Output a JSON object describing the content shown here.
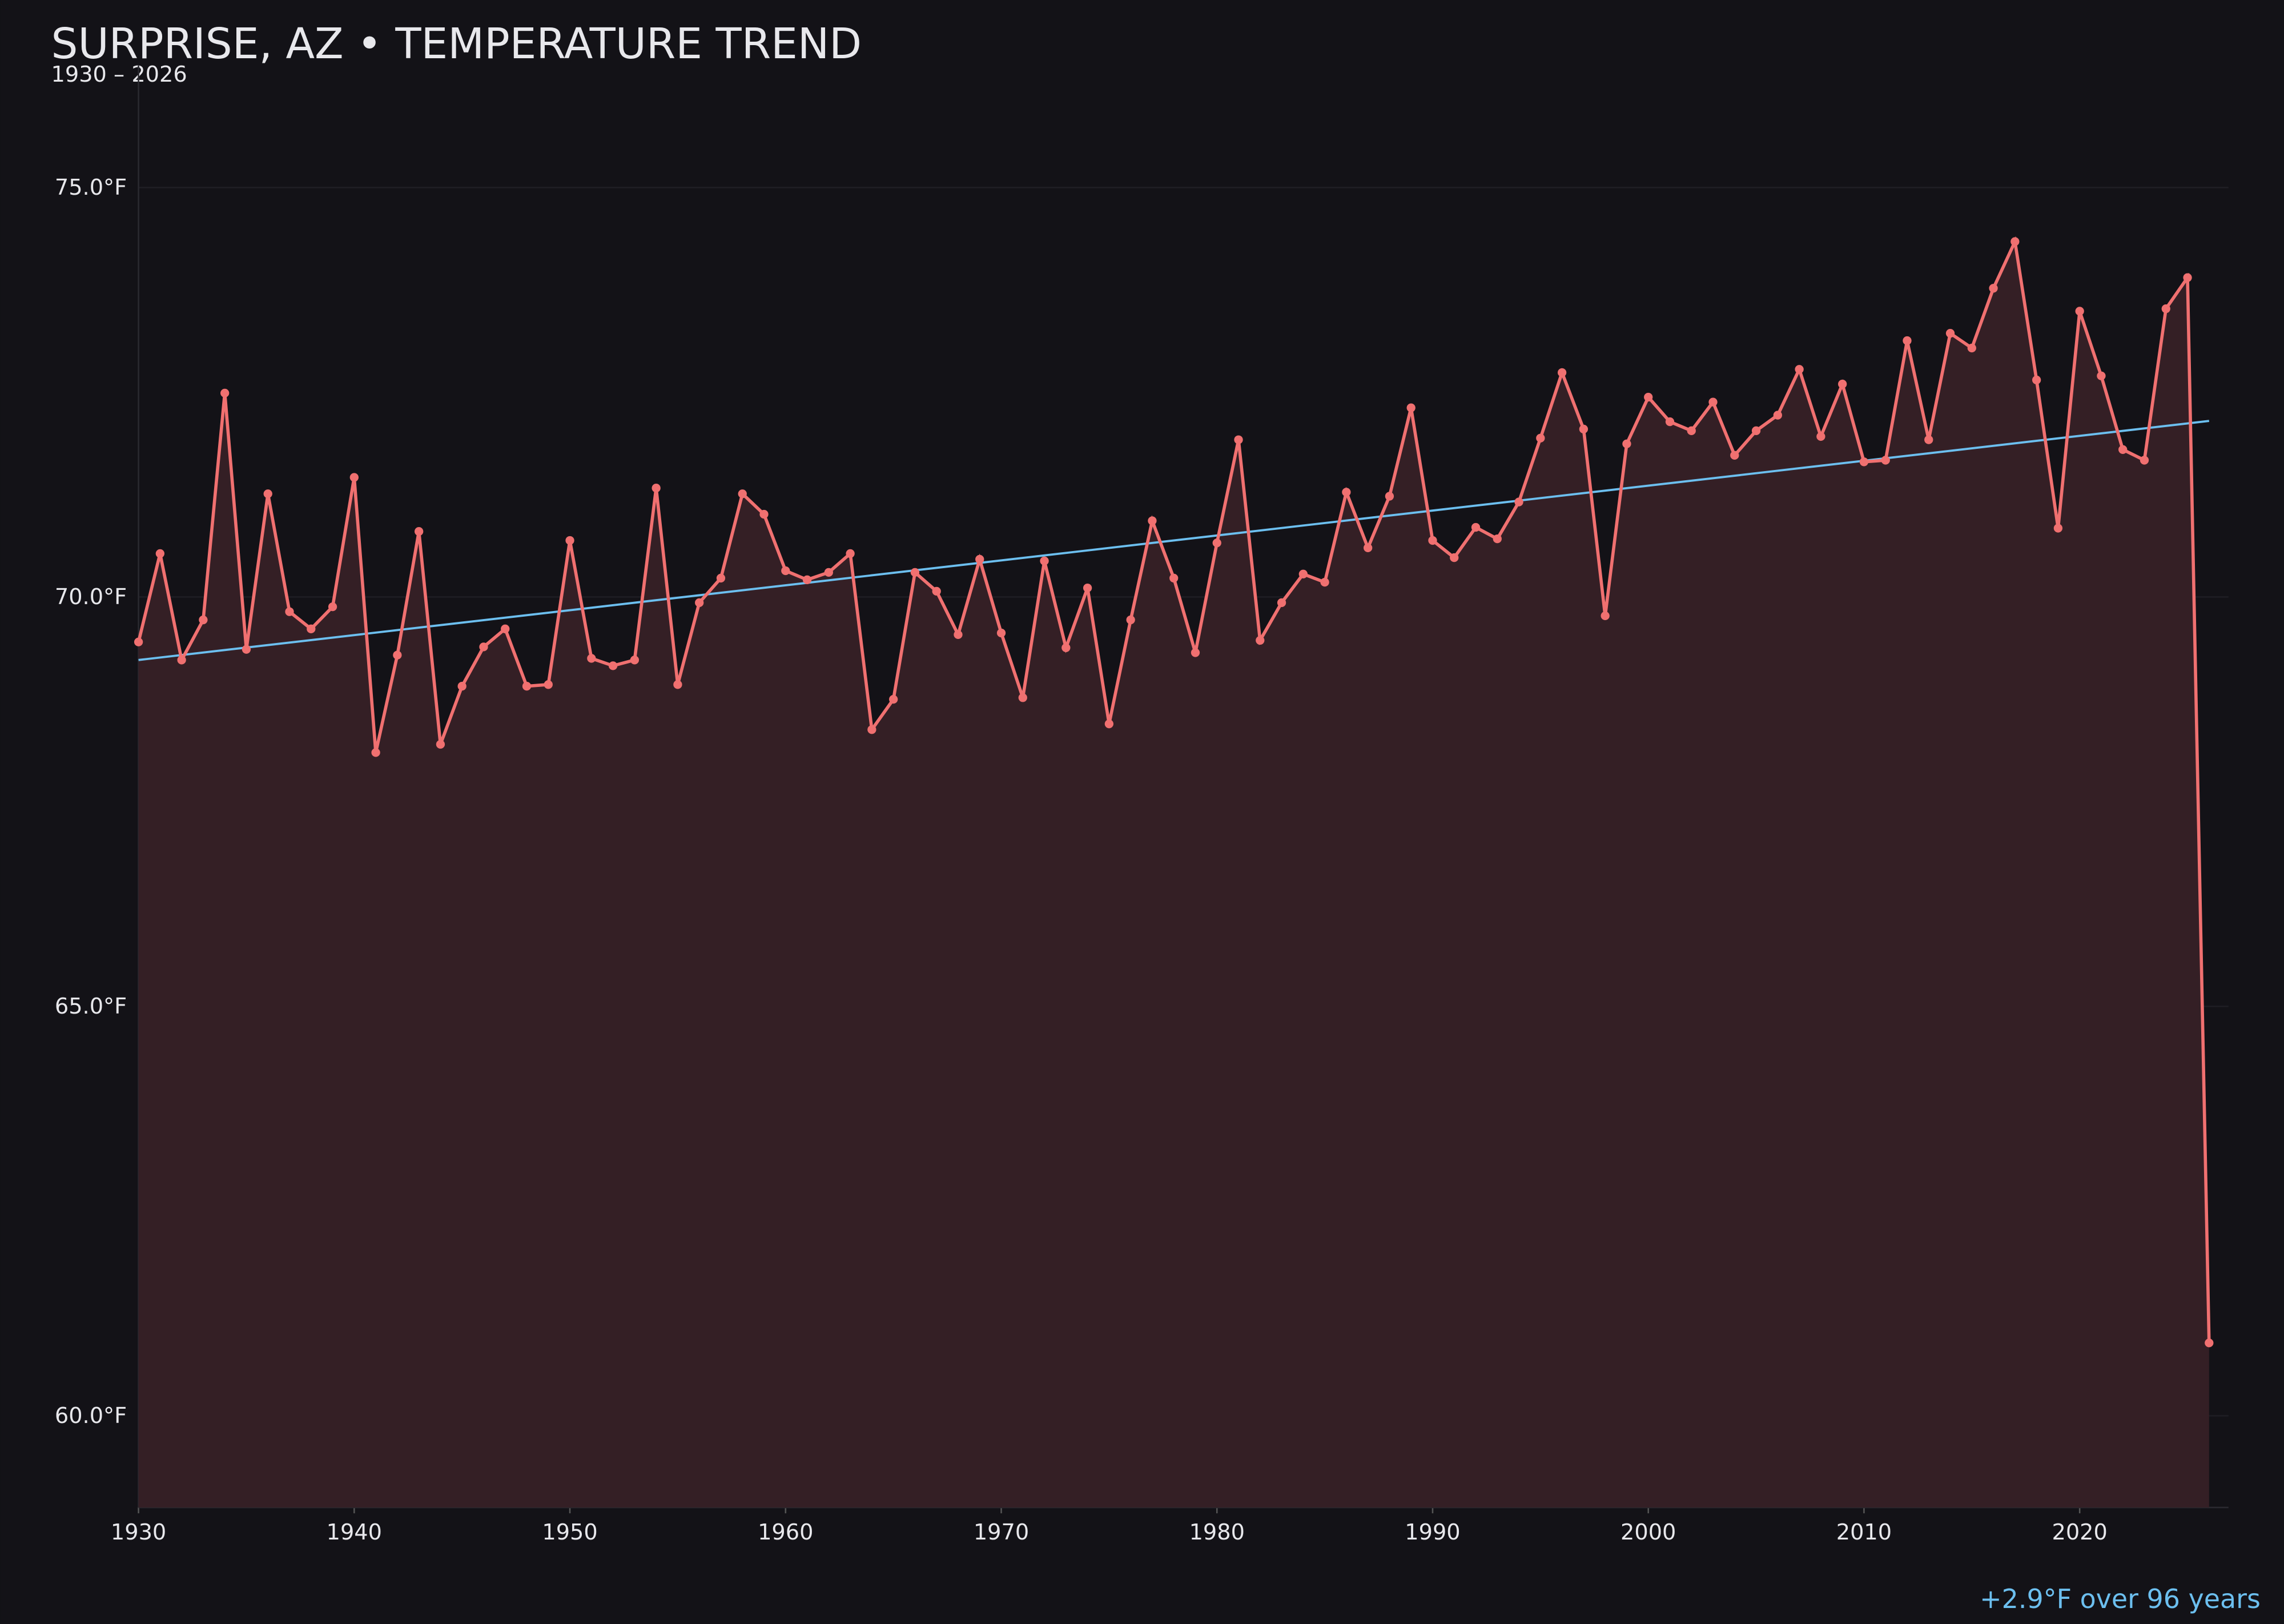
{
  "chart_data": {
    "type": "line",
    "title": "SURPRISE, AZ • TEMPERATURE TREND",
    "subtitle": "1930 – 2026",
    "annotation": "+2.9°F over 96 years",
    "x": [
      1930,
      1931,
      1932,
      1933,
      1934,
      1935,
      1936,
      1937,
      1938,
      1939,
      1940,
      1941,
      1942,
      1943,
      1944,
      1945,
      1946,
      1947,
      1948,
      1949,
      1950,
      1951,
      1952,
      1953,
      1954,
      1955,
      1956,
      1957,
      1958,
      1959,
      1960,
      1961,
      1962,
      1963,
      1964,
      1965,
      1966,
      1967,
      1968,
      1969,
      1970,
      1971,
      1972,
      1973,
      1974,
      1975,
      1976,
      1977,
      1978,
      1979,
      1980,
      1981,
      1982,
      1983,
      1984,
      1985,
      1986,
      1987,
      1988,
      1989,
      1990,
      1991,
      1992,
      1993,
      1994,
      1995,
      1996,
      1997,
      1998,
      1999,
      2000,
      2001,
      2002,
      2003,
      2004,
      2005,
      2006,
      2007,
      2008,
      2009,
      2010,
      2011,
      2012,
      2013,
      2014,
      2015,
      2016,
      2017,
      2018,
      2019,
      2020,
      2021,
      2022,
      2023,
      2024,
      2025,
      2026
    ],
    "series": [
      {
        "color": "#f07070",
        "values": [
          69.45,
          70.53,
          69.23,
          69.72,
          72.49,
          69.36,
          71.26,
          69.82,
          69.61,
          69.88,
          71.46,
          68.1,
          69.29,
          70.8,
          68.2,
          68.91,
          69.39,
          69.61,
          68.91,
          68.93,
          70.69,
          69.25,
          69.16,
          69.23,
          71.33,
          68.93,
          69.93,
          70.23,
          71.26,
          71.01,
          70.32,
          70.21,
          70.3,
          70.53,
          68.38,
          68.75,
          70.3,
          70.07,
          69.54,
          70.46,
          69.56,
          68.77,
          70.44,
          69.38,
          70.11,
          68.45,
          69.72,
          70.93,
          70.23,
          69.32,
          70.66,
          71.92,
          69.47,
          69.93,
          70.28,
          70.18,
          71.28,
          70.6,
          71.23,
          72.31,
          70.69,
          70.48,
          70.85,
          70.71,
          71.16,
          71.94,
          72.74,
          72.05,
          69.77,
          71.87,
          72.44,
          72.14,
          72.03,
          72.38,
          71.73,
          72.03,
          72.22,
          72.78,
          71.96,
          72.6,
          71.65,
          71.67,
          73.13,
          71.92,
          73.22,
          73.04,
          73.77,
          74.34,
          72.65,
          70.84,
          73.49,
          72.7,
          71.8,
          71.67,
          73.52,
          73.9,
          60.89
        ]
      }
    ],
    "fill_color": "#341f25",
    "trend": {
      "color": "#6cbfef",
      "x": [
        1930,
        2026
      ],
      "values": [
        69.23,
        72.15
      ]
    },
    "xlim": [
      1930,
      2026.9
    ],
    "ylim": [
      58.88,
      76.49
    ],
    "xticks": [
      1930,
      1940,
      1950,
      1960,
      1970,
      1980,
      1990,
      2000,
      2010,
      2020
    ],
    "yticks": [
      {
        "value": 60,
        "label": "60.0°F"
      },
      {
        "value": 65,
        "label": "65.0°F"
      },
      {
        "value": 70,
        "label": "70.0°F"
      },
      {
        "value": 75,
        "label": "75.0°F"
      }
    ],
    "grid": true
  }
}
